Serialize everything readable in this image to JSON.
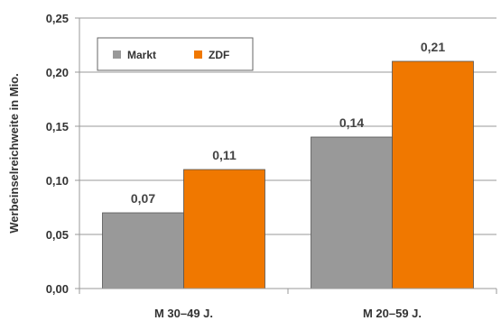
{
  "chart_data": {
    "type": "bar",
    "categories": [
      "M 30–49 J.",
      "M 20–59 J."
    ],
    "series": [
      {
        "name": "Markt",
        "values": [
          0.07,
          0.14
        ],
        "value_labels": [
          "0,07",
          "0,14"
        ],
        "color": "#999999"
      },
      {
        "name": "ZDF",
        "values": [
          0.11,
          0.21
        ],
        "value_labels": [
          "0,11",
          "0,21"
        ],
        "color": "#f07800"
      }
    ],
    "title": "",
    "xlabel": "",
    "ylabel": "Werbeinselreichweite in Mio.",
    "ylim": [
      0,
      0.25
    ],
    "yticks": [
      0,
      0.05,
      0.1,
      0.15,
      0.2,
      0.25
    ],
    "ytick_labels": [
      "0,00",
      "0,05",
      "0,10",
      "0,15",
      "0,20",
      "0,25"
    ],
    "grid": true,
    "legend_position": "top-left"
  }
}
